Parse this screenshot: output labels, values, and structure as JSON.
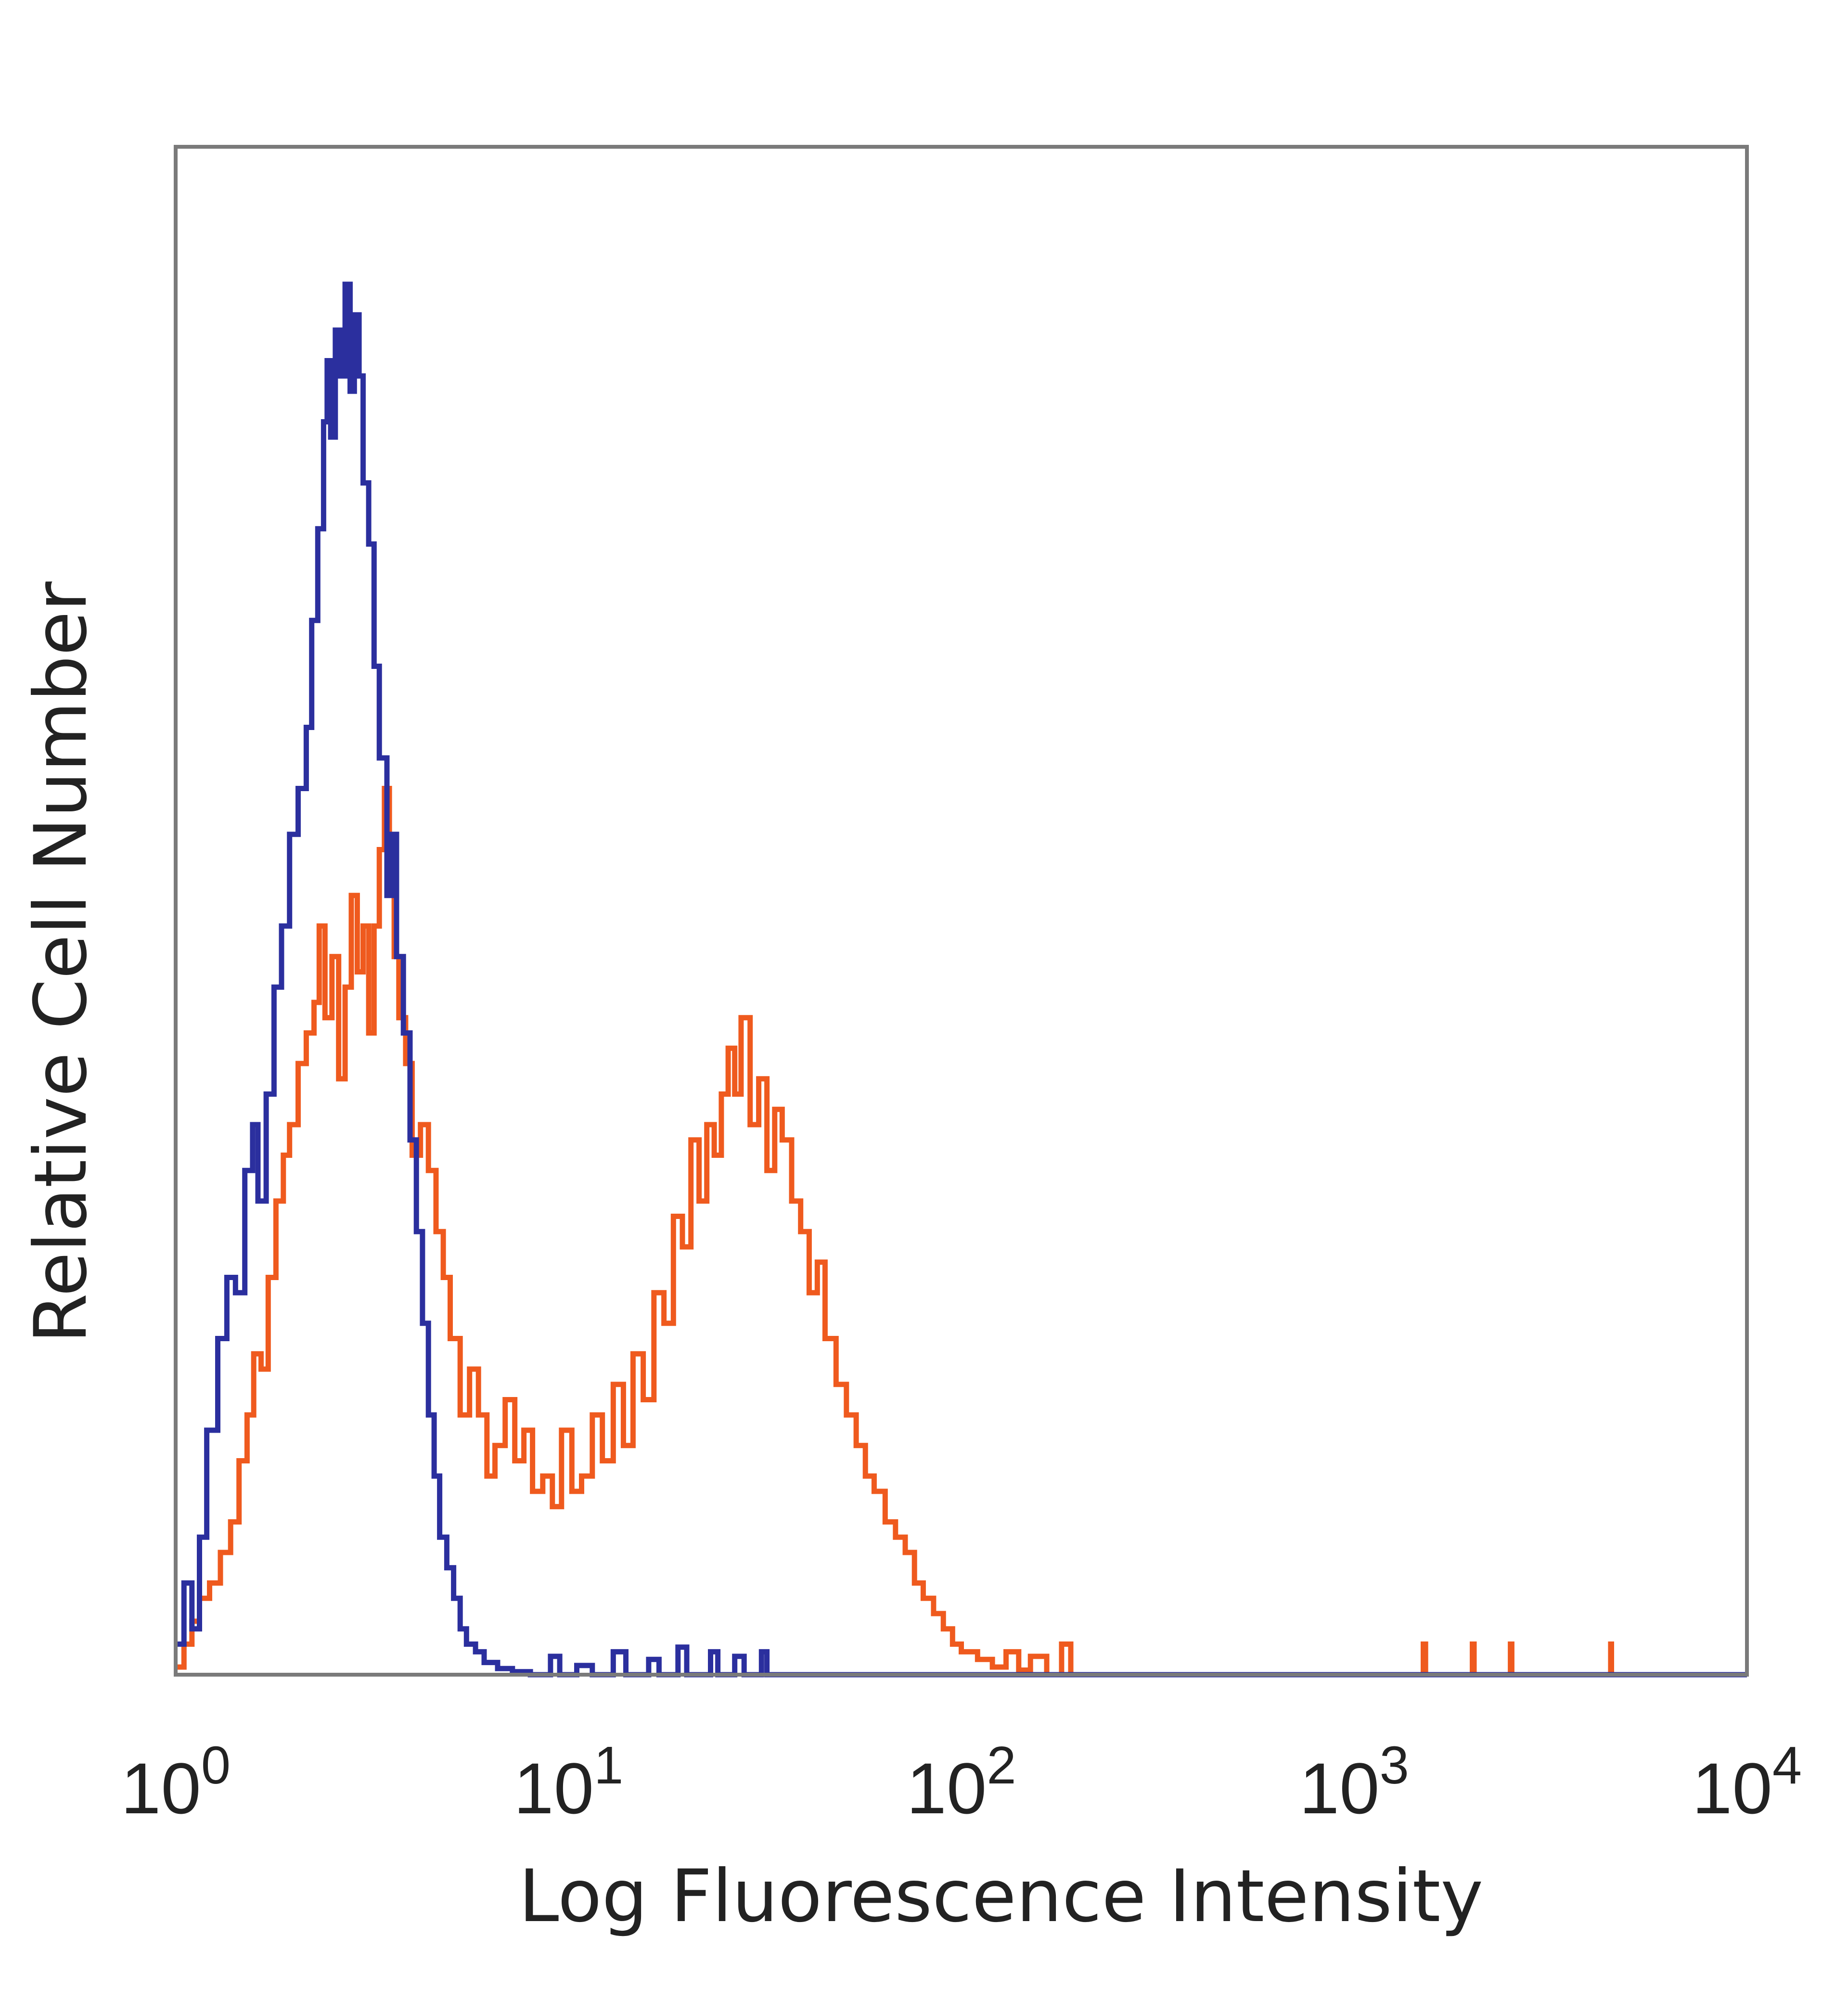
{
  "chart_data": {
    "type": "line",
    "xlabel": "Log Fluorescence Intensity",
    "ylabel": "Relative Cell Number",
    "x_scale": "log",
    "xlim": [
      1,
      10000
    ],
    "ylim": [
      0,
      100
    ],
    "x_ticks": [
      {
        "base": "10",
        "exp": "0",
        "value": 1
      },
      {
        "base": "10",
        "exp": "1",
        "value": 10
      },
      {
        "base": "10",
        "exp": "2",
        "value": 100
      },
      {
        "base": "10",
        "exp": "3",
        "value": 1000
      },
      {
        "base": "10",
        "exp": "4",
        "value": 10000
      }
    ],
    "grid": false,
    "legend": "none",
    "series": [
      {
        "color": "#2b2f9e",
        "points": [
          [
            1.0,
            2
          ],
          [
            1.05,
            6
          ],
          [
            1.1,
            3
          ],
          [
            1.15,
            9
          ],
          [
            1.2,
            16
          ],
          [
            1.28,
            22
          ],
          [
            1.35,
            26
          ],
          [
            1.42,
            25
          ],
          [
            1.5,
            33
          ],
          [
            1.57,
            36
          ],
          [
            1.62,
            31
          ],
          [
            1.7,
            38
          ],
          [
            1.78,
            45
          ],
          [
            1.86,
            49
          ],
          [
            1.95,
            55
          ],
          [
            2.05,
            58
          ],
          [
            2.15,
            62
          ],
          [
            2.22,
            69
          ],
          [
            2.3,
            75
          ],
          [
            2.38,
            82
          ],
          [
            2.43,
            86
          ],
          [
            2.48,
            81
          ],
          [
            2.55,
            88
          ],
          [
            2.62,
            85
          ],
          [
            2.7,
            91
          ],
          [
            2.78,
            84
          ],
          [
            2.85,
            89
          ],
          [
            2.93,
            85
          ],
          [
            3.0,
            78
          ],
          [
            3.1,
            74
          ],
          [
            3.2,
            66
          ],
          [
            3.3,
            60
          ],
          [
            3.45,
            51
          ],
          [
            3.55,
            55
          ],
          [
            3.65,
            47
          ],
          [
            3.8,
            42
          ],
          [
            3.95,
            35
          ],
          [
            4.1,
            29
          ],
          [
            4.25,
            23
          ],
          [
            4.4,
            17
          ],
          [
            4.55,
            13
          ],
          [
            4.7,
            9
          ],
          [
            4.9,
            7
          ],
          [
            5.1,
            5
          ],
          [
            5.3,
            3
          ],
          [
            5.5,
            2
          ],
          [
            5.8,
            1.5
          ],
          [
            6.1,
            0.8
          ],
          [
            6.6,
            0.4
          ],
          [
            7.2,
            0.2
          ],
          [
            8.0,
            0
          ],
          [
            9.0,
            1.2
          ],
          [
            9.5,
            0
          ],
          [
            10.5,
            0.6
          ],
          [
            11.5,
            0
          ],
          [
            13.0,
            1.5
          ],
          [
            14.0,
            0
          ],
          [
            16.0,
            1.0
          ],
          [
            17.0,
            0
          ],
          [
            19.0,
            1.8
          ],
          [
            20.0,
            0
          ],
          [
            23.0,
            1.5
          ],
          [
            24.0,
            0
          ],
          [
            26.5,
            1.2
          ],
          [
            28.0,
            0
          ],
          [
            31.0,
            1.5
          ],
          [
            32.0,
            0
          ],
          [
            100,
            0
          ],
          [
            1000,
            0
          ],
          [
            10000,
            0
          ]
        ]
      },
      {
        "color": "#ef5a1e",
        "points": [
          [
            1.0,
            0.5
          ],
          [
            1.05,
            2
          ],
          [
            1.1,
            3.5
          ],
          [
            1.15,
            5
          ],
          [
            1.22,
            6
          ],
          [
            1.3,
            8
          ],
          [
            1.38,
            10
          ],
          [
            1.45,
            14
          ],
          [
            1.52,
            17
          ],
          [
            1.58,
            21
          ],
          [
            1.65,
            20
          ],
          [
            1.72,
            26
          ],
          [
            1.8,
            31
          ],
          [
            1.88,
            34
          ],
          [
            1.95,
            36
          ],
          [
            2.05,
            40
          ],
          [
            2.15,
            42
          ],
          [
            2.25,
            44
          ],
          [
            2.32,
            49
          ],
          [
            2.4,
            43
          ],
          [
            2.5,
            47
          ],
          [
            2.6,
            39
          ],
          [
            2.7,
            45
          ],
          [
            2.8,
            51
          ],
          [
            2.9,
            46
          ],
          [
            3.0,
            49
          ],
          [
            3.1,
            42
          ],
          [
            3.2,
            49
          ],
          [
            3.3,
            54
          ],
          [
            3.4,
            58
          ],
          [
            3.5,
            52
          ],
          [
            3.6,
            47
          ],
          [
            3.7,
            43
          ],
          [
            3.85,
            40
          ],
          [
            4.0,
            34
          ],
          [
            4.2,
            36
          ],
          [
            4.4,
            33
          ],
          [
            4.6,
            29
          ],
          [
            4.8,
            26
          ],
          [
            5.0,
            22
          ],
          [
            5.3,
            17
          ],
          [
            5.6,
            20
          ],
          [
            5.9,
            17
          ],
          [
            6.2,
            13
          ],
          [
            6.5,
            15
          ],
          [
            6.9,
            18
          ],
          [
            7.3,
            14
          ],
          [
            7.7,
            16
          ],
          [
            8.1,
            12
          ],
          [
            8.6,
            13
          ],
          [
            9.1,
            11
          ],
          [
            9.6,
            16
          ],
          [
            10.2,
            12
          ],
          [
            10.8,
            13
          ],
          [
            11.5,
            17
          ],
          [
            12.2,
            14
          ],
          [
            13.0,
            19
          ],
          [
            13.8,
            15
          ],
          [
            14.6,
            21
          ],
          [
            15.5,
            18
          ],
          [
            16.5,
            25
          ],
          [
            17.5,
            23
          ],
          [
            18.5,
            30
          ],
          [
            19.5,
            28
          ],
          [
            20.5,
            35
          ],
          [
            21.5,
            31
          ],
          [
            22.5,
            36
          ],
          [
            23.5,
            34
          ],
          [
            24.5,
            38
          ],
          [
            25.5,
            41
          ],
          [
            26.5,
            38
          ],
          [
            27.5,
            43
          ],
          [
            29.0,
            36
          ],
          [
            30.5,
            39
          ],
          [
            32.0,
            33
          ],
          [
            33.5,
            37
          ],
          [
            35.0,
            35
          ],
          [
            37.0,
            31
          ],
          [
            39.0,
            29
          ],
          [
            41.0,
            25
          ],
          [
            43.0,
            27
          ],
          [
            45.0,
            22
          ],
          [
            48.0,
            19
          ],
          [
            51.0,
            17
          ],
          [
            54.0,
            15
          ],
          [
            57.0,
            13
          ],
          [
            60.0,
            12
          ],
          [
            64.0,
            10
          ],
          [
            68.0,
            9
          ],
          [
            72.0,
            8
          ],
          [
            76.0,
            6
          ],
          [
            80.0,
            5
          ],
          [
            85.0,
            4
          ],
          [
            90.0,
            3
          ],
          [
            95.0,
            2
          ],
          [
            100,
            1.5
          ],
          [
            110,
            1
          ],
          [
            120,
            0.5
          ],
          [
            130,
            1.5
          ],
          [
            140,
            0.3
          ],
          [
            150,
            1.2
          ],
          [
            165,
            0
          ],
          [
            180,
            2
          ],
          [
            190,
            0
          ],
          [
            1480,
            0
          ],
          [
            1500,
            2
          ],
          [
            1520,
            0
          ],
          [
            1990,
            0
          ],
          [
            2000,
            2
          ],
          [
            2020,
            0
          ],
          [
            2490,
            0
          ],
          [
            2500,
            2
          ],
          [
            2520,
            0
          ],
          [
            4490,
            0
          ],
          [
            4500,
            2
          ],
          [
            4520,
            0
          ],
          [
            10000,
            0
          ]
        ]
      }
    ]
  }
}
